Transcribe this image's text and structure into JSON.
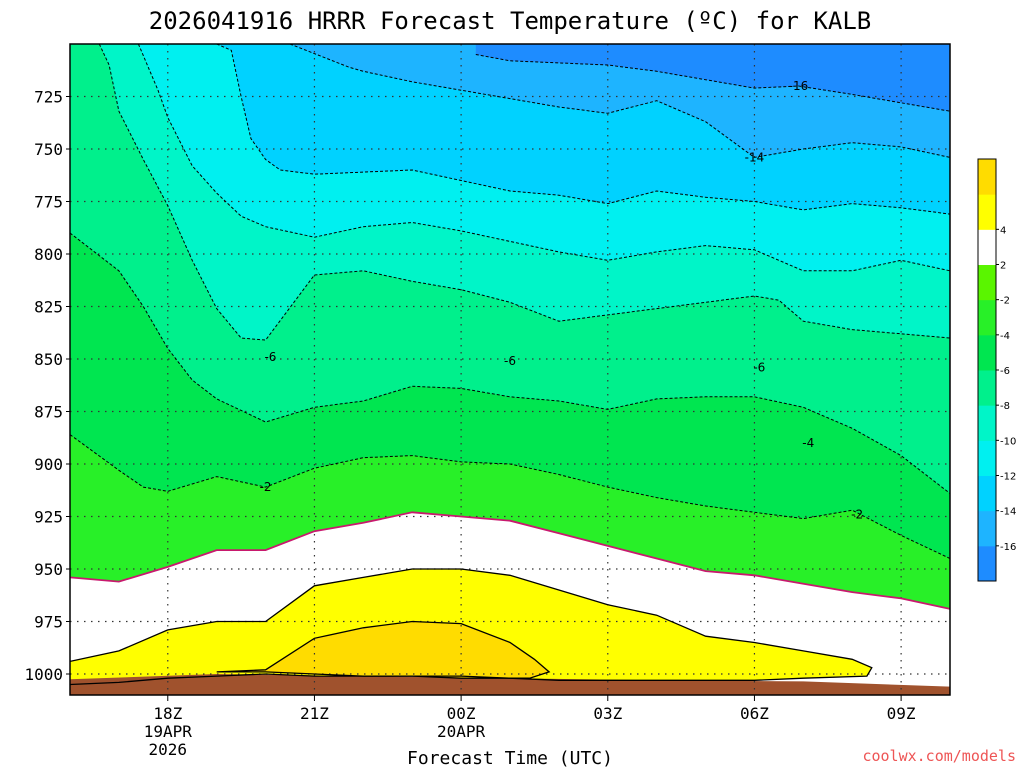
{
  "chart_data": {
    "type": "heatmap",
    "title": "2026041916 HRRR Forecast Temperature (ºC) for KALB",
    "xlabel": "Forecast Time (UTC)",
    "ylabel": "",
    "ylim": [
      1010,
      700
    ],
    "y_ticks": [
      725,
      750,
      775,
      800,
      825,
      850,
      875,
      900,
      925,
      950,
      975,
      1000
    ],
    "x_ticks": [
      {
        "hour": 18,
        "label": "18Z",
        "sub1": "19APR",
        "sub2": "2026"
      },
      {
        "hour": 21,
        "label": "21Z",
        "sub1": "",
        "sub2": ""
      },
      {
        "hour": 24,
        "label": "00Z",
        "sub1": "20APR",
        "sub2": ""
      },
      {
        "hour": 27,
        "label": "03Z",
        "sub1": "",
        "sub2": ""
      },
      {
        "hour": 30,
        "label": "06Z",
        "sub1": "",
        "sub2": ""
      },
      {
        "hour": 33,
        "label": "09Z",
        "sub1": "",
        "sub2": ""
      }
    ],
    "xlim": [
      16,
      34
    ],
    "grid": true,
    "colorbar": {
      "levels": [
        -18,
        -16,
        -14,
        -12,
        -10,
        -8,
        -6,
        -4,
        -2,
        2,
        4,
        6
      ],
      "tick_labels": [
        "-16",
        "-14",
        "-12",
        "-10",
        "-8",
        "-6",
        "-4",
        "-2",
        "2",
        "4"
      ],
      "colors": [
        "#1e8cff",
        "#1eb4ff",
        "#00d2ff",
        "#00f0f0",
        "#00f5c8",
        "#00f08c",
        "#00e650",
        "#28f028",
        "#5af500",
        "#ffffff",
        "#ffff00",
        "#ffdc00"
      ]
    },
    "contour_labels": [
      {
        "text": "-16",
        "hour": 30.9,
        "p": 720
      },
      {
        "text": "-14",
        "hour": 30.0,
        "p": 754
      },
      {
        "text": "-6",
        "hour": 20.1,
        "p": 849
      },
      {
        "text": "-6",
        "hour": 25.0,
        "p": 851
      },
      {
        "text": "-6",
        "hour": 30.1,
        "p": 854
      },
      {
        "text": "-4",
        "hour": 31.1,
        "p": 890
      },
      {
        "text": "-2",
        "hour": 20.0,
        "p": 911
      },
      {
        "text": "-2",
        "hour": 32.1,
        "p": 924
      }
    ],
    "isotherms": [
      {
        "level": -16,
        "style": "dashed",
        "points": [
          [
            24.3,
            705
          ],
          [
            25,
            708
          ],
          [
            26,
            709
          ],
          [
            27,
            710
          ],
          [
            28,
            713
          ],
          [
            29,
            717
          ],
          [
            30,
            721
          ],
          [
            30.9,
            720
          ],
          [
            32,
            724
          ],
          [
            33,
            728
          ],
          [
            34,
            732
          ]
        ]
      },
      {
        "level": -14,
        "style": "dashed",
        "points": [
          [
            20.5,
            700
          ],
          [
            21.7,
            711
          ],
          [
            22,
            713
          ],
          [
            23,
            718
          ],
          [
            24,
            722
          ],
          [
            25,
            726
          ],
          [
            26,
            730
          ],
          [
            27,
            733
          ],
          [
            28,
            727
          ],
          [
            29,
            737
          ],
          [
            30,
            754
          ],
          [
            31,
            750
          ],
          [
            32,
            747
          ],
          [
            33,
            749
          ],
          [
            34,
            754
          ]
        ]
      },
      {
        "level": -12,
        "style": "dashed",
        "points": [
          [
            19,
            700
          ],
          [
            19.3,
            703
          ],
          [
            19.5,
            725
          ],
          [
            19.7,
            745
          ],
          [
            20,
            755
          ],
          [
            20.3,
            760
          ],
          [
            21,
            762
          ],
          [
            22,
            761
          ],
          [
            23,
            760
          ],
          [
            24,
            765
          ],
          [
            25,
            770
          ],
          [
            26,
            772
          ],
          [
            27,
            776
          ],
          [
            28,
            770
          ],
          [
            29,
            773
          ],
          [
            30,
            775
          ],
          [
            31,
            779
          ],
          [
            32,
            776
          ],
          [
            33,
            778
          ],
          [
            34,
            781
          ]
        ]
      },
      {
        "level": -10,
        "style": "dashed",
        "points": [
          [
            17.4,
            700
          ],
          [
            17.8,
            722
          ],
          [
            18,
            735
          ],
          [
            18.5,
            758
          ],
          [
            19,
            771
          ],
          [
            19.5,
            782
          ],
          [
            20,
            787
          ],
          [
            21,
            792
          ],
          [
            22,
            787
          ],
          [
            23,
            785
          ],
          [
            24,
            789
          ],
          [
            25,
            794
          ],
          [
            26,
            799
          ],
          [
            27,
            803
          ],
          [
            28,
            799
          ],
          [
            29,
            796
          ],
          [
            30,
            798
          ],
          [
            31,
            808
          ],
          [
            32,
            808
          ],
          [
            33,
            803
          ],
          [
            34,
            808
          ]
        ]
      },
      {
        "level": -8,
        "style": "dashed",
        "points": [
          [
            16.6,
            700
          ],
          [
            16.8,
            710
          ],
          [
            17,
            732
          ],
          [
            17.5,
            755
          ],
          [
            18,
            777
          ],
          [
            18.5,
            803
          ],
          [
            19,
            826
          ],
          [
            19.5,
            840
          ],
          [
            20,
            841
          ],
          [
            21,
            810
          ],
          [
            22,
            808
          ],
          [
            23,
            813
          ],
          [
            24,
            817
          ],
          [
            25,
            823
          ],
          [
            26,
            832
          ],
          [
            27,
            829
          ],
          [
            28,
            826
          ],
          [
            29,
            823
          ],
          [
            30,
            820
          ],
          [
            30.5,
            822
          ],
          [
            31,
            832
          ],
          [
            32,
            836
          ],
          [
            33,
            838
          ],
          [
            34,
            840
          ]
        ]
      },
      {
        "level": -6,
        "style": "dashed",
        "points": [
          [
            16,
            790
          ],
          [
            17,
            808
          ],
          [
            17.5,
            825
          ],
          [
            18,
            845
          ],
          [
            18.5,
            860
          ],
          [
            19,
            869
          ],
          [
            20,
            880
          ],
          [
            21,
            873
          ],
          [
            22,
            870
          ],
          [
            23,
            863
          ],
          [
            24,
            864
          ],
          [
            25,
            868
          ],
          [
            26,
            870
          ],
          [
            27,
            874
          ],
          [
            28,
            869
          ],
          [
            29,
            868
          ],
          [
            30,
            868
          ],
          [
            31,
            873
          ],
          [
            32,
            883
          ],
          [
            33,
            896
          ],
          [
            34,
            914
          ]
        ]
      },
      {
        "level": -4,
        "style": "dashed",
        "points": [
          [
            16,
            886
          ],
          [
            17,
            903
          ],
          [
            17.5,
            911
          ],
          [
            18,
            913
          ],
          [
            19,
            906
          ],
          [
            20,
            911
          ],
          [
            21,
            902
          ],
          [
            22,
            897
          ],
          [
            23,
            896
          ],
          [
            24,
            899
          ],
          [
            25,
            900
          ],
          [
            26,
            905
          ],
          [
            27,
            911
          ],
          [
            28,
            916
          ],
          [
            29,
            920
          ],
          [
            30,
            923
          ],
          [
            31,
            926
          ],
          [
            32,
            922
          ],
          [
            33,
            934
          ],
          [
            34,
            945
          ]
        ]
      },
      {
        "level": -2,
        "style": "solid-magenta",
        "points": [
          [
            16,
            954
          ],
          [
            17,
            956
          ],
          [
            18,
            949
          ],
          [
            19,
            941
          ],
          [
            20,
            941
          ],
          [
            21,
            932
          ],
          [
            22,
            928
          ],
          [
            23,
            923
          ],
          [
            24,
            925
          ],
          [
            25,
            927
          ],
          [
            26,
            933
          ],
          [
            27,
            939
          ],
          [
            28,
            945
          ],
          [
            29,
            951
          ],
          [
            30,
            953
          ],
          [
            31,
            957
          ],
          [
            32,
            961
          ],
          [
            33,
            964
          ],
          [
            34,
            969
          ]
        ]
      },
      {
        "level": 0,
        "style": "solid",
        "points": [
          [
            16,
            994
          ],
          [
            17,
            989
          ],
          [
            18,
            979
          ],
          [
            19,
            975
          ],
          [
            20,
            975
          ],
          [
            21,
            958
          ],
          [
            22,
            954
          ],
          [
            23,
            950
          ],
          [
            24,
            950
          ],
          [
            25,
            953
          ],
          [
            26,
            960
          ],
          [
            27,
            967
          ],
          [
            28,
            972
          ],
          [
            29,
            982
          ],
          [
            30,
            985
          ],
          [
            31,
            989
          ],
          [
            32,
            993
          ],
          [
            32.4,
            997
          ],
          [
            32.3,
            1001
          ],
          [
            31,
            1002
          ],
          [
            30,
            1003
          ],
          [
            29,
            1003
          ],
          [
            28,
            1003
          ],
          [
            27,
            1003
          ],
          [
            26,
            1003
          ],
          [
            25,
            1002
          ],
          [
            24,
            1001
          ],
          [
            23,
            1001
          ],
          [
            22,
            1001
          ],
          [
            21,
            1001
          ],
          [
            20,
            1000
          ],
          [
            19,
            1001
          ],
          [
            18,
            1002
          ],
          [
            17,
            1004
          ],
          [
            16,
            1005
          ]
        ]
      },
      {
        "level": 2,
        "style": "solid",
        "points": [
          [
            19,
            999
          ],
          [
            20,
            998
          ],
          [
            21,
            983
          ],
          [
            22,
            978
          ],
          [
            23,
            975
          ],
          [
            24,
            976
          ],
          [
            25,
            985
          ],
          [
            25.5,
            993
          ],
          [
            25.8,
            999
          ],
          [
            25.4,
            1002
          ],
          [
            24,
            1002
          ],
          [
            23,
            1001
          ],
          [
            22,
            1001
          ],
          [
            21,
            1000
          ],
          [
            20,
            999
          ],
          [
            19,
            999
          ]
        ]
      }
    ],
    "ground_top": [
      [
        16,
        1002.5
      ],
      [
        19,
        1000
      ],
      [
        22,
        1001
      ],
      [
        25,
        1002
      ],
      [
        28,
        1003
      ],
      [
        31,
        1003.5
      ],
      [
        34,
        1006
      ]
    ]
  },
  "credit": "coolwx.com/models",
  "colors": {
    "credit": "#ee5555",
    "ground": "#a0522d",
    "frame": "#000000",
    "magenta": "#c8196e"
  }
}
